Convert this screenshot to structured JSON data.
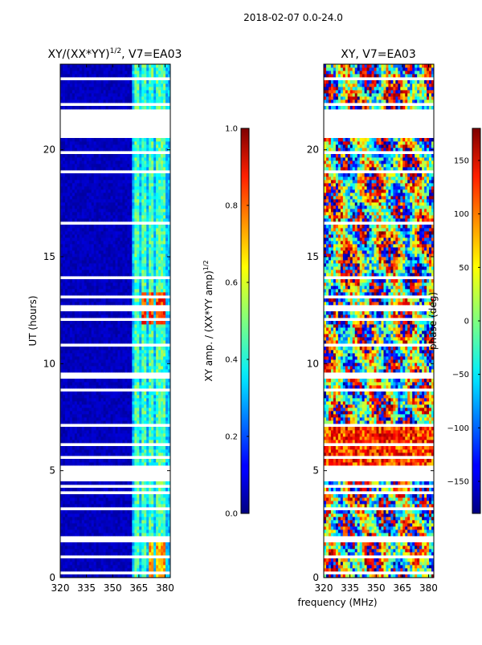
{
  "figure": {
    "suptitle": "2018-02-07 0.0-24.0",
    "shared_xlabel": "frequency (MHz)"
  },
  "chart_data": [
    {
      "type": "heatmap",
      "title_main": "XY/(XX*YY)",
      "title_sup": "1/2",
      "title_tail": ", V7=EA03",
      "xlabel": "",
      "ylabel": "UT (hours)",
      "xlim": [
        320,
        383
      ],
      "ylim": [
        0,
        24
      ],
      "xticks": [
        320,
        335,
        350,
        365,
        380
      ],
      "yticks": [
        0,
        5,
        10,
        15,
        20
      ],
      "channel_bands_mhz": [
        [
          362.5,
          364.8
        ],
        [
          366.5,
          369.0
        ],
        [
          370.5,
          373.5
        ],
        [
          375.0,
          377.0
        ],
        [
          378.0,
          380.5
        ]
      ],
      "data_gaps_ut": [
        [
          20.55,
          21.7
        ],
        [
          9.3,
          9.65
        ],
        [
          7.05,
          7.2
        ],
        [
          4.5,
          4.65
        ]
      ],
      "peak_intensity_ut": [
        11.8,
        13.4
      ],
      "colorbar": {
        "label_main": "XY amp. / (XX*YY amp)",
        "label_sup": "1/2",
        "range": [
          0.0,
          1.0
        ],
        "ticks": [
          "0.0",
          "0.2",
          "0.4",
          "0.6",
          "0.8",
          "1.0"
        ],
        "colormap": "jet"
      }
    },
    {
      "type": "heatmap",
      "title_main": "XY, V7=EA03",
      "xlabel": "frequency (MHz)",
      "ylabel": "",
      "xlim": [
        320,
        383
      ],
      "ylim": [
        0,
        24
      ],
      "xticks": [
        320,
        335,
        350,
        365,
        380
      ],
      "yticks": [
        0,
        5,
        10,
        15,
        20
      ],
      "data_gaps_ut": [
        [
          20.55,
          21.7
        ],
        [
          9.3,
          9.65
        ],
        [
          7.05,
          7.2
        ],
        [
          4.5,
          4.65
        ]
      ],
      "colorbar": {
        "label_main": "phase (deg)",
        "range": [
          -180,
          180
        ],
        "ticks": [
          "−150",
          "−100",
          "−50",
          "0",
          "50",
          "100",
          "150"
        ],
        "tick_values": [
          -150,
          -100,
          -50,
          0,
          50,
          100,
          150
        ],
        "colormap": "jet"
      }
    }
  ]
}
